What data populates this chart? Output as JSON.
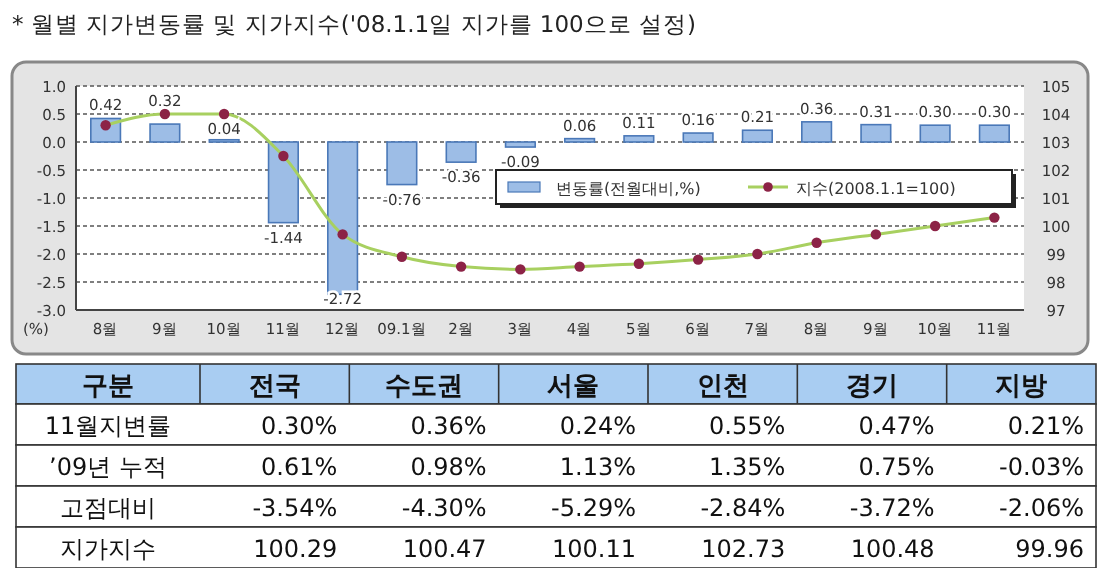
{
  "chart_data": [
    {
      "type": "bar",
      "title": "* 월별 지가변동률 및 지가지수('08.1.1일 지가를 100으로 설정)",
      "ylabel": "(%)",
      "categories": [
        "8월",
        "9월",
        "10월",
        "11월",
        "12월",
        "09.1월",
        "2월",
        "3월",
        "4월",
        "5월",
        "6월",
        "7월",
        "8월",
        "9월",
        "10월",
        "11월"
      ],
      "series": [
        {
          "name": "변동률(전월대비,%)",
          "color": "#9dbde6",
          "values": [
            0.42,
            0.32,
            0.04,
            -1.44,
            -2.72,
            -0.76,
            -0.36,
            -0.09,
            0.06,
            0.11,
            0.16,
            0.21,
            0.36,
            0.31,
            0.3,
            0.3
          ],
          "value_labels": [
            "0.42",
            "0.32",
            "0.04",
            "-1.44",
            "-2.72",
            "-0.76",
            "-0.36",
            "-0.09",
            "0.06",
            "0.11",
            "0.16",
            "0.21",
            "0.36",
            "0.31",
            "0.30",
            "0.30"
          ]
        },
        {
          "name": "지수(2008.1.1=100)",
          "type": "line",
          "axis": "y2",
          "color": "#a8d060",
          "values": [
            103.6,
            104.0,
            104.0,
            102.5,
            99.7,
            98.9,
            98.55,
            98.45,
            98.55,
            98.65,
            98.8,
            99.0,
            99.4,
            99.7,
            100.0,
            100.3
          ]
        }
      ],
      "ylim": [
        -3,
        1
      ],
      "yticks": [
        {
          "value": -3,
          "label": "-3.0"
        },
        {
          "value": -2.5,
          "label": "-2.5"
        },
        {
          "value": -2,
          "label": "-2.0"
        },
        {
          "value": -1.5,
          "label": "-1.5"
        },
        {
          "value": -1,
          "label": "-1.0"
        },
        {
          "value": -0.5,
          "label": "-0.5"
        },
        {
          "value": 0,
          "label": "0.0"
        },
        {
          "value": 0.5,
          "label": "0.5"
        },
        {
          "value": 1,
          "label": "1.0"
        }
      ],
      "y2lim": [
        97,
        105
      ],
      "y2ticks": [
        97,
        98,
        99,
        100,
        101,
        102,
        103,
        104,
        105
      ],
      "grid": "y",
      "legend": "right",
      "marker": "circle"
    },
    {
      "type": "heatmap",
      "ylabel": "구분",
      "categories": [
        "전국",
        "수도권",
        "서울",
        "인천",
        "경기",
        "지방"
      ],
      "y_categories": [
        "11월지변률",
        "’09년 누적",
        "고점대비",
        "지가지수"
      ],
      "cells": [
        [
          0.3,
          0.36,
          0.24,
          0.55,
          0.47,
          0.21
        ],
        [
          0.61,
          0.98,
          1.13,
          1.35,
          0.75,
          -0.03
        ],
        [
          -3.54,
          -4.3,
          -5.29,
          -2.84,
          -3.72,
          -2.06
        ],
        [
          100.29,
          100.47,
          100.11,
          102.73,
          100.48,
          99.96
        ]
      ],
      "cell_labels": [
        [
          "0.30%",
          "0.36%",
          "0.24%",
          "0.55%",
          "0.47%",
          "0.21%"
        ],
        [
          "0.61%",
          "0.98%",
          "1.13%",
          "1.35%",
          "0.75%",
          "-0.03%"
        ],
        [
          "-3.54%",
          "-4.30%",
          "-5.29%",
          "-2.84%",
          "-3.72%",
          "-2.06%"
        ],
        [
          "100.29",
          "100.47",
          "100.11",
          "102.73",
          "100.48",
          "99.96"
        ]
      ]
    }
  ]
}
